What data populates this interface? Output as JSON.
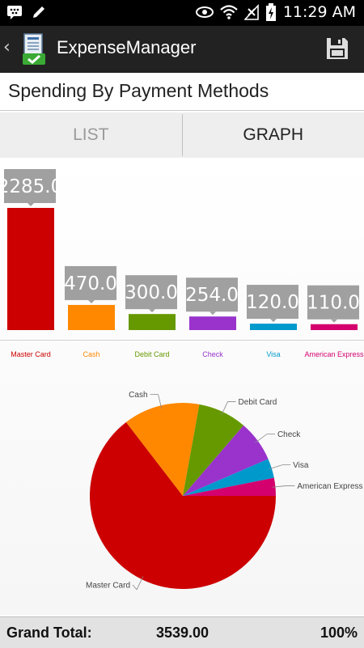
{
  "status_bar": {
    "time": "11:29 AM",
    "icons": [
      "bbm-icon",
      "pencil-icon",
      "eye-icon",
      "wifi-icon",
      "no-signal-icon",
      "battery-charging-icon"
    ]
  },
  "action_bar": {
    "title": "ExpenseManager",
    "back_icon": "back-chevron-icon",
    "app_icon": "expense-manager-app-icon",
    "save_icon": "floppy-disk-icon"
  },
  "page": {
    "title": "Spending By Payment Methods"
  },
  "tabs": [
    {
      "label": "LIST",
      "active": false
    },
    {
      "label": "GRAPH",
      "active": true
    }
  ],
  "chart_data": [
    {
      "type": "bar",
      "categories": [
        "Master Card",
        "Cash",
        "Debit Card",
        "Check",
        "Visa",
        "American Express"
      ],
      "values": [
        2285.0,
        470.0,
        300.0,
        254.0,
        120.0,
        110.0
      ],
      "value_labels": [
        "2285.0",
        "470.0",
        "300.0",
        "254.0",
        "120.0",
        "110.0"
      ],
      "colors": [
        "#cc0000",
        "#ff8800",
        "#669900",
        "#9933cc",
        "#0099cc",
        "#d4006e"
      ],
      "ylim": [
        0,
        2285.0
      ],
      "grid": false,
      "legend": "none"
    },
    {
      "type": "pie",
      "categories": [
        "Master Card",
        "Cash",
        "Debit Card",
        "Check",
        "Visa",
        "American Express"
      ],
      "values": [
        2285.0,
        470.0,
        300.0,
        254.0,
        120.0,
        110.0
      ],
      "colors": [
        "#cc0000",
        "#ff8800",
        "#669900",
        "#9933cc",
        "#0099cc",
        "#d4006e"
      ]
    }
  ],
  "footer": {
    "label": "Grand Total:",
    "total": "3539.00",
    "percent": "100%"
  }
}
